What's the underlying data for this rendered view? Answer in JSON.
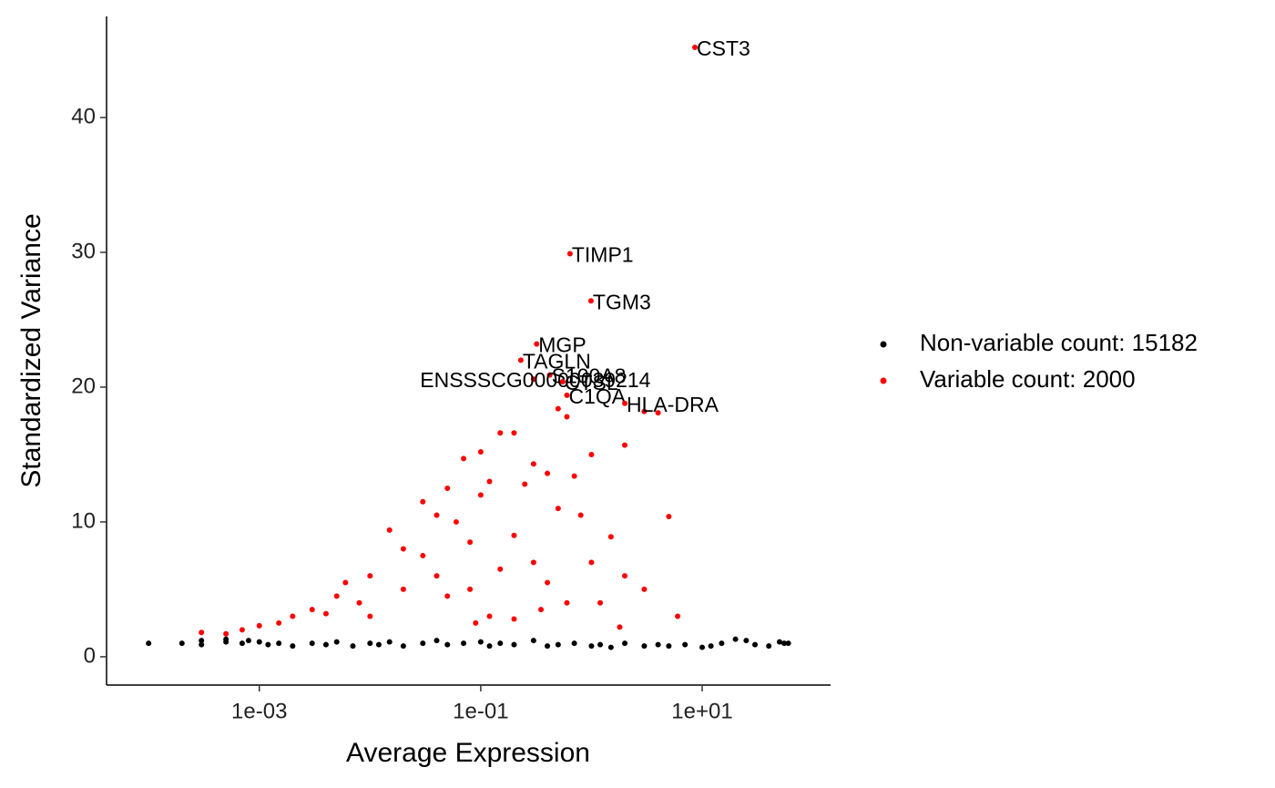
{
  "chart_data": {
    "type": "scatter",
    "x_label": "Average Expression",
    "y_label": "Standardized Variance",
    "log_x": true,
    "xlim": [
      4.17e-05,
      144.5
    ],
    "ylim": [
      -2.1,
      47.5
    ],
    "xticks": [
      {
        "value": 0.001,
        "label": "1e-03"
      },
      {
        "value": 0.1,
        "label": "1e-01"
      },
      {
        "value": 10,
        "label": "1e+01"
      }
    ],
    "yticks": [
      0,
      10,
      20,
      30,
      40
    ],
    "legend": "right",
    "series": [
      {
        "name": "Non-variable count: 15182",
        "color": "#000000",
        "x": [
          0.0001,
          0.0002,
          0.0003,
          0.0003,
          0.0005,
          0.0005,
          0.0007,
          0.0008,
          0.001,
          0.0012,
          0.0015,
          0.002,
          0.003,
          0.004,
          0.005,
          0.007,
          0.01,
          0.012,
          0.015,
          0.02,
          0.03,
          0.04,
          0.05,
          0.07,
          0.1,
          0.12,
          0.15,
          0.2,
          0.3,
          0.4,
          0.5,
          0.7,
          1,
          1.2,
          1.5,
          2,
          3,
          4,
          5,
          7,
          10,
          12,
          15,
          20,
          25,
          30,
          40,
          50,
          55,
          60
        ],
        "values": [
          1.0,
          1.0,
          1.2,
          0.9,
          1.1,
          1.3,
          1.0,
          1.2,
          1.1,
          0.9,
          1.0,
          0.8,
          1.0,
          0.9,
          1.1,
          0.8,
          1.0,
          0.9,
          1.1,
          0.8,
          1.0,
          1.2,
          0.9,
          1.0,
          1.1,
          0.8,
          1.0,
          0.9,
          1.2,
          0.8,
          0.9,
          1.0,
          0.8,
          0.9,
          0.7,
          1.0,
          0.8,
          0.9,
          0.8,
          0.9,
          0.7,
          0.8,
          1.0,
          1.3,
          1.2,
          0.9,
          0.8,
          1.1,
          1.0,
          1.0
        ]
      },
      {
        "name": "Variable count: 2000",
        "color": "#ff0000",
        "x": [
          0.0003,
          0.0005,
          0.0007,
          0.001,
          0.0015,
          0.002,
          0.003,
          0.004,
          0.005,
          0.006,
          0.008,
          0.01,
          0.01,
          0.015,
          0.02,
          0.02,
          0.03,
          0.03,
          0.04,
          0.04,
          0.05,
          0.05,
          0.06,
          0.07,
          0.08,
          0.08,
          0.1,
          0.1,
          0.12,
          0.15,
          0.15,
          0.2,
          0.2,
          0.25,
          0.3,
          0.3,
          0.4,
          0.4,
          0.5,
          0.5,
          0.6,
          0.7,
          0.8,
          1,
          1,
          1.2,
          1.5,
          2,
          2,
          3,
          3,
          4,
          5,
          6,
          0.09,
          0.12,
          0.2,
          0.35,
          0.6,
          1.8
        ],
        "values": [
          1.8,
          1.7,
          2.0,
          2.3,
          2.5,
          3.0,
          3.5,
          3.2,
          4.5,
          5.5,
          4.0,
          6.0,
          3.0,
          9.4,
          5.0,
          8.0,
          7.5,
          11.5,
          10.5,
          6.0,
          12.5,
          4.5,
          10.0,
          14.7,
          8.5,
          5.0,
          15.2,
          12.0,
          13.0,
          16.6,
          6.5,
          16.6,
          9.0,
          12.8,
          14.3,
          7.0,
          13.6,
          5.5,
          18.4,
          11.0,
          17.8,
          13.4,
          10.5,
          7.0,
          15.0,
          4.0,
          8.9,
          15.7,
          6.0,
          18.2,
          5.0,
          18.1,
          10.4,
          3.0,
          2.5,
          3.0,
          2.8,
          3.5,
          4.0,
          2.2
        ]
      }
    ],
    "annotations": [
      {
        "text": "CST3",
        "x": 8.6,
        "y": 45.2
      },
      {
        "text": "TIMP1",
        "x": 0.64,
        "y": 29.9
      },
      {
        "text": "TGM3",
        "x": 0.99,
        "y": 26.4
      },
      {
        "text": "MGP",
        "x": 0.32,
        "y": 23.2
      },
      {
        "text": "TAGLN",
        "x": 0.23,
        "y": 22.0
      },
      {
        "text": "S100A8",
        "x": 0.42,
        "y": 20.9
      },
      {
        "text": "CTSL",
        "x": 0.55,
        "y": 20.4
      },
      {
        "text": "ENSSSCG00000039214",
        "x": 0.3,
        "y": 20.6
      },
      {
        "text": "C1QA",
        "x": 0.6,
        "y": 19.4
      },
      {
        "text": "HLA-DRA",
        "x": 2.0,
        "y": 18.8
      }
    ]
  }
}
